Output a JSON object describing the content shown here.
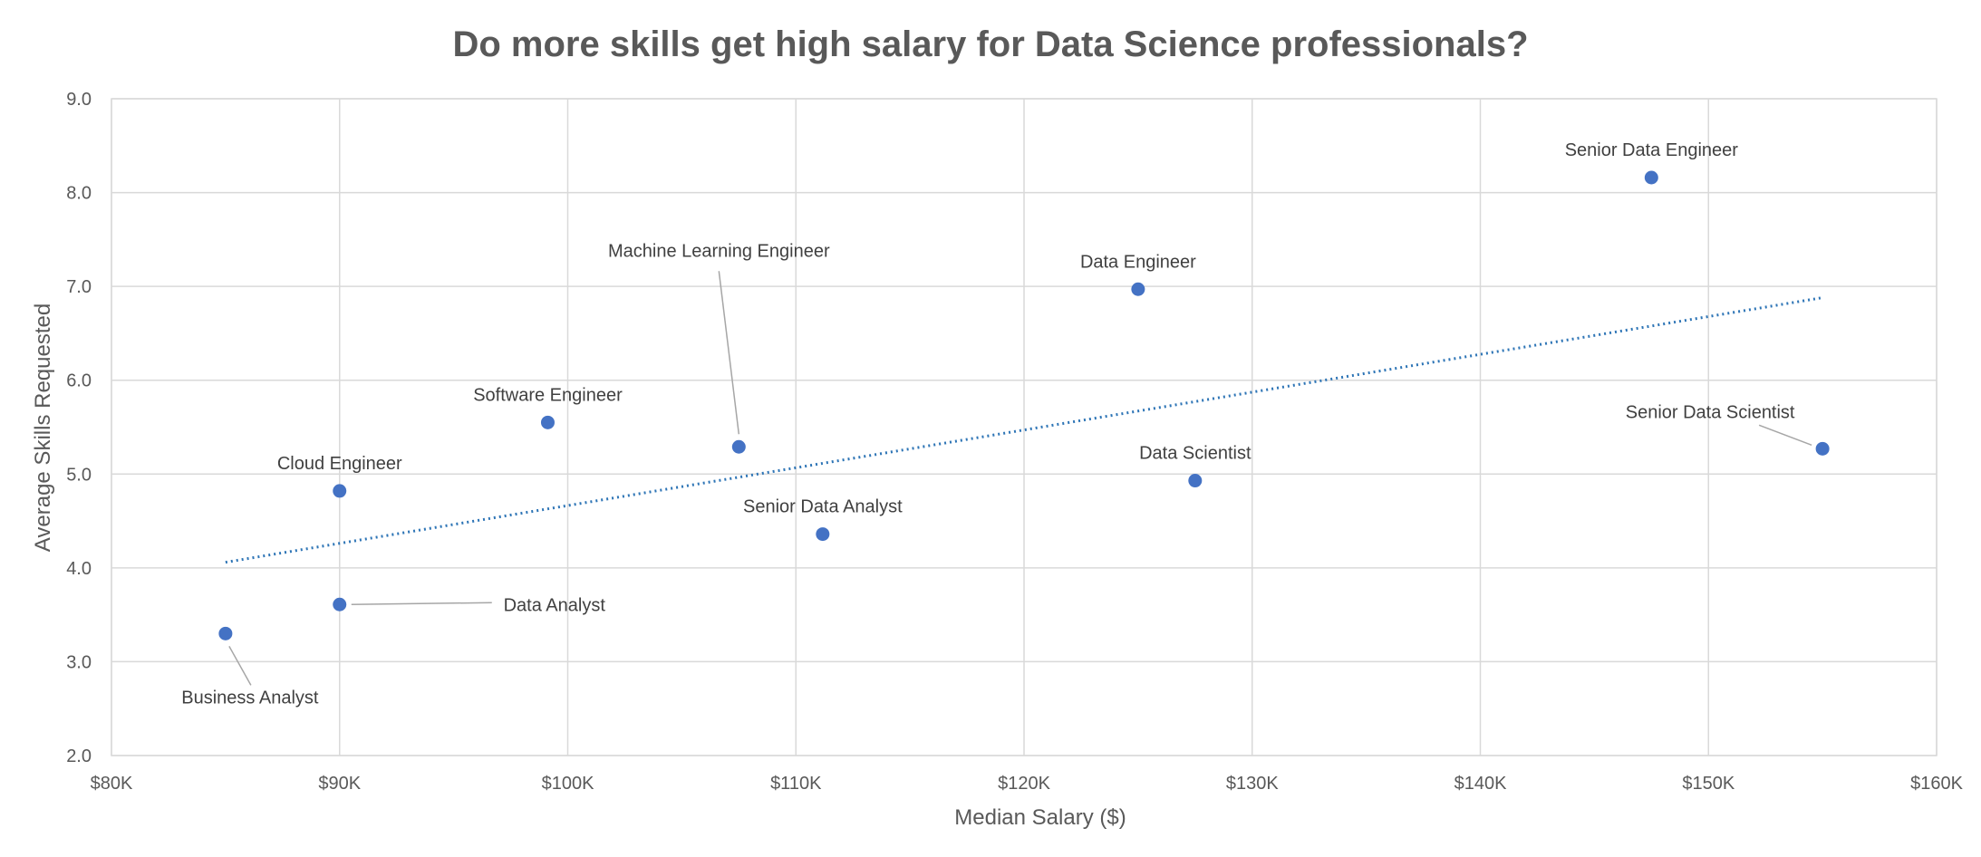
{
  "chart_data": {
    "type": "scatter",
    "title": "Do more skills get high salary for Data Science professionals?",
    "xlabel": "Median Salary ($)",
    "ylabel": "Average Skills Requested",
    "xlim": [
      80000,
      160000
    ],
    "ylim": [
      2.0,
      9.0
    ],
    "x_ticks": [
      80000,
      90000,
      100000,
      110000,
      120000,
      130000,
      140000,
      150000,
      160000
    ],
    "x_tick_labels": [
      "$80K",
      "$90K",
      "$100K",
      "$110K",
      "$120K",
      "$130K",
      "$140K",
      "$150K",
      "$160K"
    ],
    "y_ticks": [
      2.0,
      3.0,
      4.0,
      5.0,
      6.0,
      7.0,
      8.0,
      9.0
    ],
    "y_tick_labels": [
      "2.0",
      "3.0",
      "4.0",
      "5.0",
      "6.0",
      "7.0",
      "8.0",
      "9.0"
    ],
    "grid": true,
    "legend": "none",
    "point_color": "#4472c4",
    "trendline": {
      "type": "linear",
      "style": "dotted",
      "color": "#2e75b6",
      "x": [
        85000,
        155000
      ],
      "y": [
        4.06,
        6.88
      ]
    },
    "points": [
      {
        "label": "Business Analyst",
        "x": 85000,
        "y": 3.3
      },
      {
        "label": "Data Analyst",
        "x": 90000,
        "y": 3.61
      },
      {
        "label": "Cloud Engineer",
        "x": 90000,
        "y": 4.82
      },
      {
        "label": "Software Engineer",
        "x": 99125,
        "y": 5.55
      },
      {
        "label": "Machine Learning Engineer",
        "x": 107500,
        "y": 5.29
      },
      {
        "label": "Senior Data Analyst",
        "x": 111175,
        "y": 4.36
      },
      {
        "label": "Data Engineer",
        "x": 125000,
        "y": 6.97
      },
      {
        "label": "Data Scientist",
        "x": 127500,
        "y": 4.93
      },
      {
        "label": "Senior Data Engineer",
        "x": 147500,
        "y": 8.16
      },
      {
        "label": "Senior Data Scientist",
        "x": 155000,
        "y": 5.27
      }
    ]
  }
}
